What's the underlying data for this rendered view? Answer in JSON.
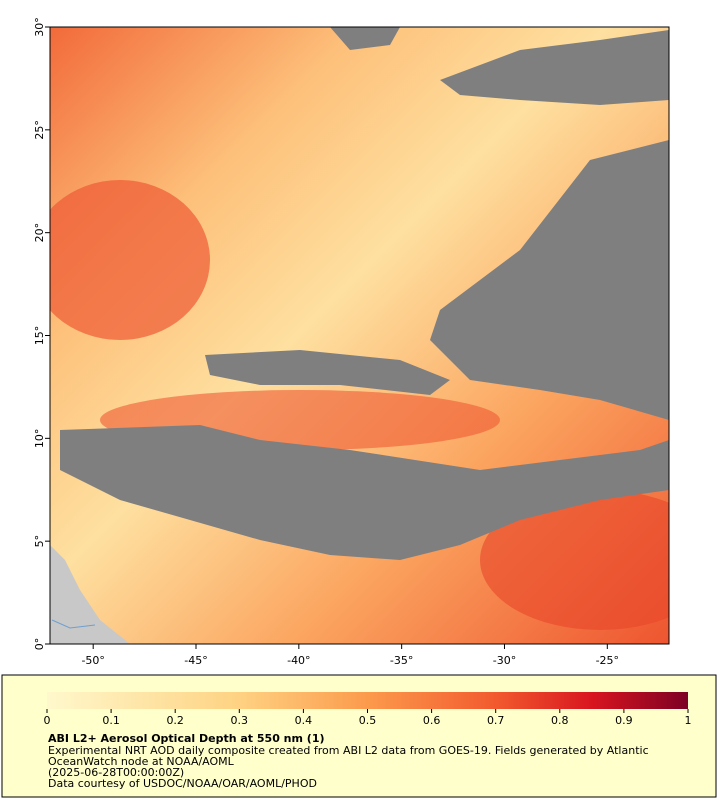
{
  "map": {
    "xlim": [
      -52.1,
      -22
    ],
    "ylim": [
      0,
      30
    ],
    "xticks": [
      {
        "value": -50,
        "label": "-50°"
      },
      {
        "value": -45,
        "label": "-45°"
      },
      {
        "value": -40,
        "label": "-40°"
      },
      {
        "value": -35,
        "label": "-35°"
      },
      {
        "value": -30,
        "label": "-30°"
      },
      {
        "value": -25,
        "label": "-25°"
      }
    ],
    "yticks": [
      {
        "value": 0,
        "label": "0°"
      },
      {
        "value": 5,
        "label": "5°"
      },
      {
        "value": 10,
        "label": "10°"
      },
      {
        "value": 15,
        "label": "15°"
      },
      {
        "value": 20,
        "label": "20°"
      },
      {
        "value": 25,
        "label": "25°"
      },
      {
        "value": 30,
        "label": "30°"
      }
    ]
  },
  "colorbar": {
    "lim": [
      0,
      1
    ],
    "ticks": [
      0,
      0.1,
      0.2,
      0.3,
      0.4,
      0.5,
      0.6,
      0.7,
      0.8,
      0.9,
      1
    ]
  },
  "legend": {
    "title": "ABI L2+ Aerosol Optical Depth at 550 nm (1)",
    "lines": [
      "Experimental NRT AOD daily composite created from ABI L2 data from GOES-19. Fields generated by Atlantic",
      "OceanWatch node at NOAA/AOML",
      "(2025-06-28T00:00:00Z)",
      "Data courtesy of USDOC/NOAA/OAR/AOML/PHOD"
    ]
  }
}
